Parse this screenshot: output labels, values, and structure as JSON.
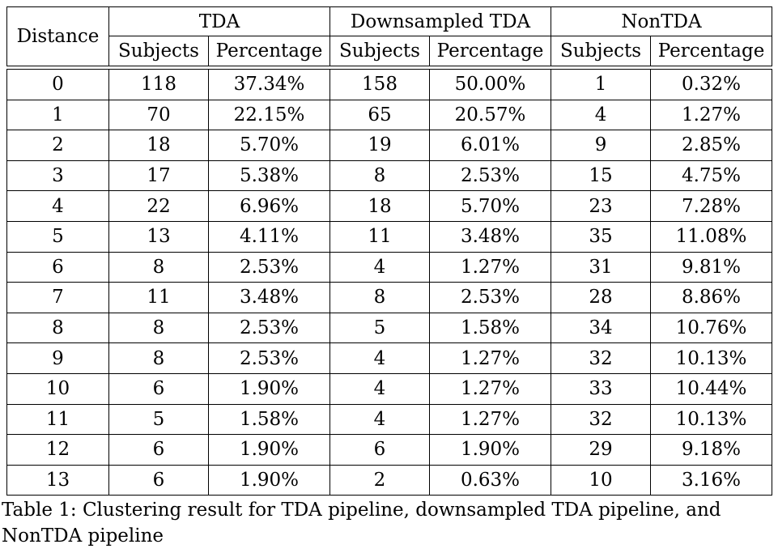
{
  "table": {
    "header": {
      "distance": "Distance",
      "groups": [
        "TDA",
        "Downsampled TDA",
        "NonTDA"
      ],
      "subheaders": [
        "Subjects",
        "Percentage",
        "Subjects",
        "Percentage",
        "Subjects",
        "Percentage"
      ]
    },
    "rows": [
      [
        "0",
        "118",
        "37.34%",
        "158",
        "50.00%",
        "1",
        "0.32%"
      ],
      [
        "1",
        "70",
        "22.15%",
        "65",
        "20.57%",
        "4",
        "1.27%"
      ],
      [
        "2",
        "18",
        "5.70%",
        "19",
        "6.01%",
        "9",
        "2.85%"
      ],
      [
        "3",
        "17",
        "5.38%",
        "8",
        "2.53%",
        "15",
        "4.75%"
      ],
      [
        "4",
        "22",
        "6.96%",
        "18",
        "5.70%",
        "23",
        "7.28%"
      ],
      [
        "5",
        "13",
        "4.11%",
        "11",
        "3.48%",
        "35",
        "11.08%"
      ],
      [
        "6",
        "8",
        "2.53%",
        "4",
        "1.27%",
        "31",
        "9.81%"
      ],
      [
        "7",
        "11",
        "3.48%",
        "8",
        "2.53%",
        "28",
        "8.86%"
      ],
      [
        "8",
        "8",
        "2.53%",
        "5",
        "1.58%",
        "34",
        "10.76%"
      ],
      [
        "9",
        "8",
        "2.53%",
        "4",
        "1.27%",
        "32",
        "10.13%"
      ],
      [
        "10",
        "6",
        "1.90%",
        "4",
        "1.27%",
        "33",
        "10.44%"
      ],
      [
        "11",
        "5",
        "1.58%",
        "4",
        "1.27%",
        "32",
        "10.13%"
      ],
      [
        "12",
        "6",
        "1.90%",
        "6",
        "1.90%",
        "29",
        "9.18%"
      ],
      [
        "13",
        "6",
        "1.90%",
        "2",
        "0.63%",
        "10",
        "3.16%"
      ]
    ]
  },
  "caption": "Table 1: Clustering result for TDA pipeline, downsampled TDA pipeline, and NonTDA pipeline"
}
